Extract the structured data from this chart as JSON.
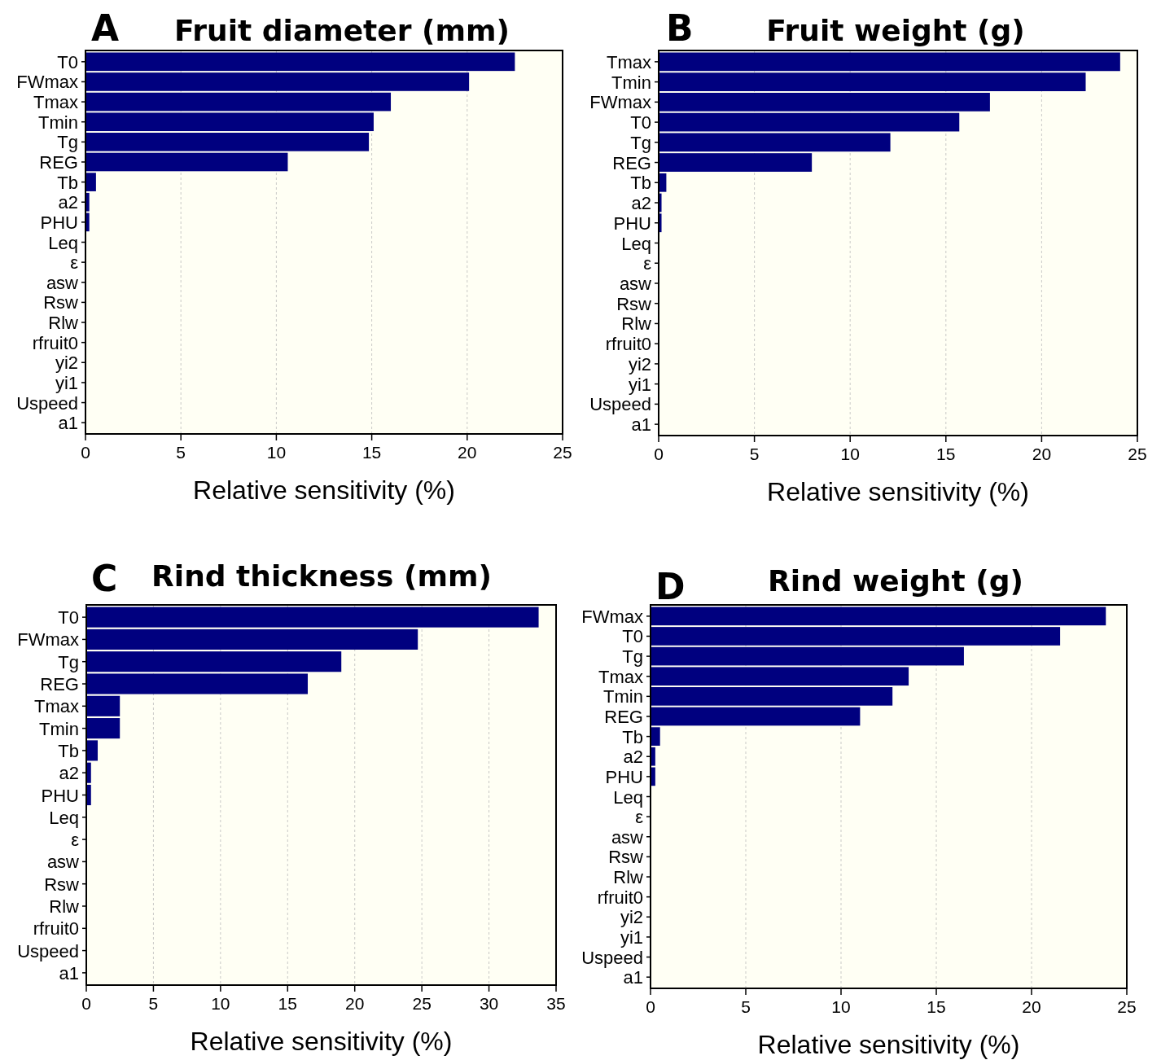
{
  "chart_data": [
    {
      "type": "bar",
      "orientation": "horizontal",
      "title": "Fruit diameter (mm)",
      "annotations": [
        "A"
      ],
      "xlabel": "Relative sensitivity (%)",
      "categories": [
        "T0",
        "FWmax",
        "Tmax",
        "Tmin",
        "Tg",
        "REG",
        "Tb",
        "a2",
        "PHU",
        "Leq",
        "ε",
        "asw",
        "Rsw",
        "Rlw",
        "rfruit0",
        "yi2",
        "yi1",
        "Uspeed",
        "a1"
      ],
      "values": [
        22.5,
        20.1,
        16.0,
        15.1,
        14.85,
        10.6,
        0.55,
        0.2,
        0.2,
        0,
        0,
        0,
        0,
        0,
        0,
        0,
        0,
        0,
        0
      ],
      "color": "#00007f",
      "xlim": [
        0,
        25
      ],
      "xticks": [
        0,
        5,
        10,
        15,
        20,
        25
      ],
      "grid": "x"
    },
    {
      "type": "bar",
      "orientation": "horizontal",
      "title": "Fruit weight (g)",
      "annotations": [
        "B"
      ],
      "xlabel": "Relative sensitivity (%)",
      "categories": [
        "Tmax",
        "Tmin",
        "FWmax",
        "T0",
        "Tg",
        "REG",
        "Tb",
        "a2",
        "PHU",
        "Leq",
        "ε",
        "asw",
        "Rsw",
        "Rlw",
        "rfruit0",
        "yi2",
        "yi1",
        "Uspeed",
        "a1"
      ],
      "values": [
        24.1,
        22.3,
        17.3,
        15.7,
        12.1,
        8.0,
        0.4,
        0.15,
        0.15,
        0,
        0,
        0,
        0,
        0,
        0,
        0,
        0,
        0,
        0
      ],
      "color": "#00007f",
      "xlim": [
        0,
        25
      ],
      "xticks": [
        0,
        5,
        10,
        15,
        20,
        25
      ],
      "grid": "x"
    },
    {
      "type": "bar",
      "orientation": "horizontal",
      "title": "Rind thickness (mm)",
      "annotations": [
        "C"
      ],
      "xlabel": "Relative sensitivity (%)",
      "categories": [
        "T0",
        "FWmax",
        "Tg",
        "REG",
        "Tmax",
        "Tmin",
        "Tb",
        "a2",
        "PHU",
        "Leq",
        "ε",
        "asw",
        "Rsw",
        "Rlw",
        "rfruit0",
        "Uspeed",
        "a1"
      ],
      "values": [
        33.7,
        24.7,
        19.0,
        16.5,
        2.5,
        2.5,
        0.85,
        0.35,
        0.35,
        0,
        0,
        0,
        0,
        0,
        0,
        0,
        0
      ],
      "color": "#00007f",
      "xlim": [
        0,
        35
      ],
      "xticks": [
        0,
        5,
        10,
        15,
        20,
        25,
        30,
        35
      ],
      "grid": "x"
    },
    {
      "type": "bar",
      "orientation": "horizontal",
      "title": "Rind weight (g)",
      "annotations": [
        "D"
      ],
      "xlabel": "Relative sensitivity (%)",
      "categories": [
        "FWmax",
        "T0",
        "Tg",
        "Tmax",
        "Tmin",
        "REG",
        "Tb",
        "a2",
        "PHU",
        "Leq",
        "ε",
        "asw",
        "Rsw",
        "Rlw",
        "rfruit0",
        "yi2",
        "yi1",
        "Uspeed",
        "a1"
      ],
      "values": [
        23.9,
        21.5,
        16.45,
        13.55,
        12.7,
        11.0,
        0.5,
        0.25,
        0.25,
        0,
        0,
        0,
        0,
        0,
        0,
        0,
        0,
        0,
        0
      ],
      "color": "#00007f",
      "xlim": [
        0,
        25
      ],
      "xticks": [
        0,
        5,
        10,
        15,
        20,
        25
      ],
      "grid": "x"
    }
  ]
}
